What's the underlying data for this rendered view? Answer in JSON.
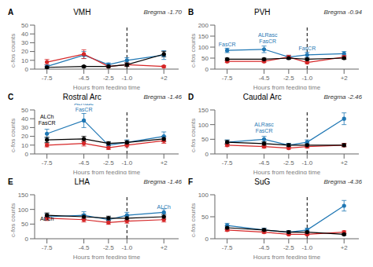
{
  "chart_data": [
    {
      "type": "line",
      "label": "A",
      "title": "VMH",
      "subtitle": "Bregma -1.70",
      "x_label": "Hours from feeding time",
      "y_label": "c-fos counts",
      "grid": false,
      "x": [
        -7.5,
        -4.5,
        -2.5,
        -1.0,
        2
      ],
      "xlim": [
        -8.5,
        3.2
      ],
      "xticks": [
        -7.5,
        -4.5,
        -2.5,
        {
          "value": -1.0,
          "label": "-1.0"
        },
        {
          "value": 2,
          "label": "+2"
        }
      ],
      "ylim": [
        0,
        50
      ],
      "yticks": [
        0,
        10,
        20,
        30,
        40,
        50
      ],
      "vline": -1.0,
      "series": [
        {
          "color": "#1f77b4",
          "marker": "circle",
          "values": [
            3,
            16,
            5,
            10,
            16
          ],
          "errors": [
            2,
            4,
            2,
            3,
            5
          ]
        },
        {
          "color": "#d62728",
          "marker": "circle",
          "values": [
            8,
            17,
            3,
            5,
            3
          ],
          "errors": [
            3,
            5,
            1,
            2,
            1
          ]
        },
        {
          "color": "#000000",
          "marker": "circle",
          "values": [
            2,
            3,
            3,
            5,
            17
          ],
          "errors": [
            1,
            1,
            1,
            2,
            3
          ]
        }
      ],
      "annotations": []
    },
    {
      "type": "line",
      "label": "B",
      "title": "PVH",
      "subtitle": "Bregma -0.94",
      "x_label": "Hours from feeding time",
      "y_label": "c-fos counts",
      "grid": false,
      "x": [
        -7.5,
        -4.5,
        -2.5,
        -1.0,
        2
      ],
      "xlim": [
        -8.5,
        3.2
      ],
      "xticks": [
        -7.5,
        -4.5,
        -2.5,
        {
          "value": -1.0,
          "label": "-1.0"
        },
        {
          "value": 2,
          "label": "+2"
        }
      ],
      "ylim": [
        0,
        200
      ],
      "yticks": [
        0,
        50,
        100,
        150,
        200
      ],
      "vline": -1.0,
      "series": [
        {
          "color": "#1f77b4",
          "marker": "circle",
          "values": [
            85,
            90,
            55,
            65,
            70
          ],
          "errors": [
            10,
            15,
            8,
            12,
            10
          ]
        },
        {
          "color": "#d62728",
          "marker": "circle",
          "values": [
            35,
            35,
            55,
            30,
            55
          ],
          "errors": [
            5,
            5,
            8,
            5,
            8
          ]
        },
        {
          "color": "#000000",
          "marker": "circle",
          "values": [
            45,
            45,
            50,
            45,
            50
          ],
          "errors": [
            5,
            5,
            5,
            5,
            5
          ]
        }
      ],
      "annotations": [
        {
          "text": "FasCR",
          "x": -7.5,
          "y": 100,
          "color": "#1f77b4"
        },
        {
          "text": "ALRasc\nFasCR",
          "x": -4.2,
          "y": 115,
          "color": "#1f77b4"
        },
        {
          "text": "FasCR",
          "x": -1.0,
          "y": 82,
          "color": "#1f77b4"
        }
      ]
    },
    {
      "type": "line",
      "label": "C",
      "title": "Rostral Arc",
      "subtitle": "Bregma -1.46",
      "x_label": "Hours from feeding time",
      "y_label": "c-fos counts",
      "grid": false,
      "x": [
        -7.5,
        -4.5,
        -2.5,
        -1.0,
        2
      ],
      "xlim": [
        -8.5,
        3.2
      ],
      "xticks": [
        -7.5,
        -4.5,
        -2.5,
        {
          "value": -1.0,
          "label": "-1.0"
        },
        {
          "value": 2,
          "label": "+2"
        }
      ],
      "ylim": [
        0,
        50
      ],
      "yticks": [
        0,
        10,
        20,
        30,
        40,
        50
      ],
      "vline": -1.0,
      "series": [
        {
          "color": "#1f77b4",
          "marker": "circle",
          "values": [
            23,
            38,
            10,
            13,
            20
          ],
          "errors": [
            5,
            8,
            3,
            3,
            5
          ]
        },
        {
          "color": "#d62728",
          "marker": "circle",
          "values": [
            10,
            12,
            7,
            10,
            15
          ],
          "errors": [
            2,
            3,
            2,
            2,
            3
          ]
        },
        {
          "color": "#000000",
          "marker": "circle",
          "values": [
            16,
            17,
            12,
            13,
            17
          ],
          "errors": [
            3,
            3,
            2,
            2,
            3
          ]
        }
      ],
      "annotations": [
        {
          "text": "ALRasc\nFasCR",
          "x": -4.5,
          "y": 47,
          "color": "#1f77b4"
        },
        {
          "text": "ALCh\nFasCR",
          "x": -7.5,
          "y": 32,
          "color": "#000000"
        }
      ]
    },
    {
      "type": "line",
      "label": "D",
      "title": "Caudal Arc",
      "subtitle": "Bregma -2.46",
      "x_label": "Hours from feeding time",
      "y_label": "c-fos counts",
      "grid": false,
      "x": [
        -7.5,
        -4.5,
        -2.5,
        -1.0,
        2
      ],
      "xlim": [
        -8.5,
        3.2
      ],
      "xticks": [
        -7.5,
        -4.5,
        -2.5,
        {
          "value": -1.0,
          "label": "-1.0"
        },
        {
          "value": 2,
          "label": "+2"
        }
      ],
      "ylim": [
        0,
        150
      ],
      "yticks": [
        0,
        50,
        100,
        150
      ],
      "vline": -1.0,
      "series": [
        {
          "color": "#1f77b4",
          "marker": "circle",
          "values": [
            40,
            50,
            30,
            40,
            120
          ],
          "errors": [
            8,
            10,
            6,
            8,
            20
          ]
        },
        {
          "color": "#d62728",
          "marker": "circle",
          "values": [
            30,
            25,
            20,
            25,
            30
          ],
          "errors": [
            5,
            5,
            4,
            5,
            6
          ]
        },
        {
          "color": "#000000",
          "marker": "circle",
          "values": [
            40,
            35,
            30,
            30,
            30
          ],
          "errors": [
            6,
            6,
            5,
            5,
            5
          ]
        }
      ],
      "annotations": [
        {
          "text": "ALRasc\nFasCR",
          "x": -4.5,
          "y": 70,
          "color": "#1f77b4"
        }
      ]
    },
    {
      "type": "line",
      "label": "E",
      "title": "LHA",
      "subtitle": "Bregma -1.46",
      "x_label": "Hours from feeding time",
      "y_label": "c-fos counts",
      "grid": false,
      "x": [
        -7.5,
        -4.5,
        -2.5,
        -1.0,
        2
      ],
      "xlim": [
        -8.5,
        3.2
      ],
      "xticks": [
        -7.5,
        -4.5,
        -2.5,
        {
          "value": -1.0,
          "label": "-1.0"
        },
        {
          "value": 2,
          "label": "+2"
        }
      ],
      "ylim": [
        0,
        150
      ],
      "yticks": [
        0,
        50,
        100,
        150
      ],
      "vline": -1.0,
      "series": [
        {
          "color": "#1f77b4",
          "marker": "circle",
          "values": [
            75,
            80,
            65,
            80,
            90
          ],
          "errors": [
            10,
            12,
            8,
            10,
            12
          ]
        },
        {
          "color": "#d62728",
          "marker": "circle",
          "values": [
            70,
            65,
            55,
            60,
            65
          ],
          "errors": [
            8,
            8,
            6,
            7,
            8
          ]
        },
        {
          "color": "#000000",
          "marker": "circle",
          "values": [
            80,
            75,
            70,
            70,
            75
          ],
          "errors": [
            8,
            8,
            7,
            7,
            8
          ]
        }
      ],
      "annotations": [
        {
          "text": "ALCh",
          "x": 2,
          "y": 100,
          "color": "#1f77b4"
        },
        {
          "text": "ALCh",
          "x": -7.5,
          "y": 60,
          "color": "#000000"
        }
      ]
    },
    {
      "type": "line",
      "label": "F",
      "title": "SuG",
      "subtitle": "Bregma -4.36",
      "x_label": "Hours from feeding time",
      "y_label": "c-fos counts",
      "grid": false,
      "x": [
        -7.5,
        -4.5,
        -2.5,
        -1.0,
        2
      ],
      "xlim": [
        -8.5,
        3.2
      ],
      "xticks": [
        -7.5,
        -4.5,
        -2.5,
        {
          "value": -1.0,
          "label": "-1.0"
        },
        {
          "value": 2,
          "label": "+2"
        }
      ],
      "ylim": [
        0,
        100
      ],
      "yticks": [
        0,
        50,
        100
      ],
      "vline": -1.0,
      "series": [
        {
          "color": "#1f77b4",
          "marker": "circle",
          "values": [
            30,
            20,
            15,
            20,
            75
          ],
          "errors": [
            5,
            4,
            3,
            4,
            12
          ]
        },
        {
          "color": "#d62728",
          "marker": "circle",
          "values": [
            20,
            15,
            10,
            10,
            15
          ],
          "errors": [
            3,
            3,
            2,
            2,
            3
          ]
        },
        {
          "color": "#000000",
          "marker": "circle",
          "values": [
            25,
            20,
            15,
            15,
            10
          ],
          "errors": [
            4,
            3,
            3,
            3,
            2
          ]
        }
      ],
      "annotations": []
    }
  ]
}
